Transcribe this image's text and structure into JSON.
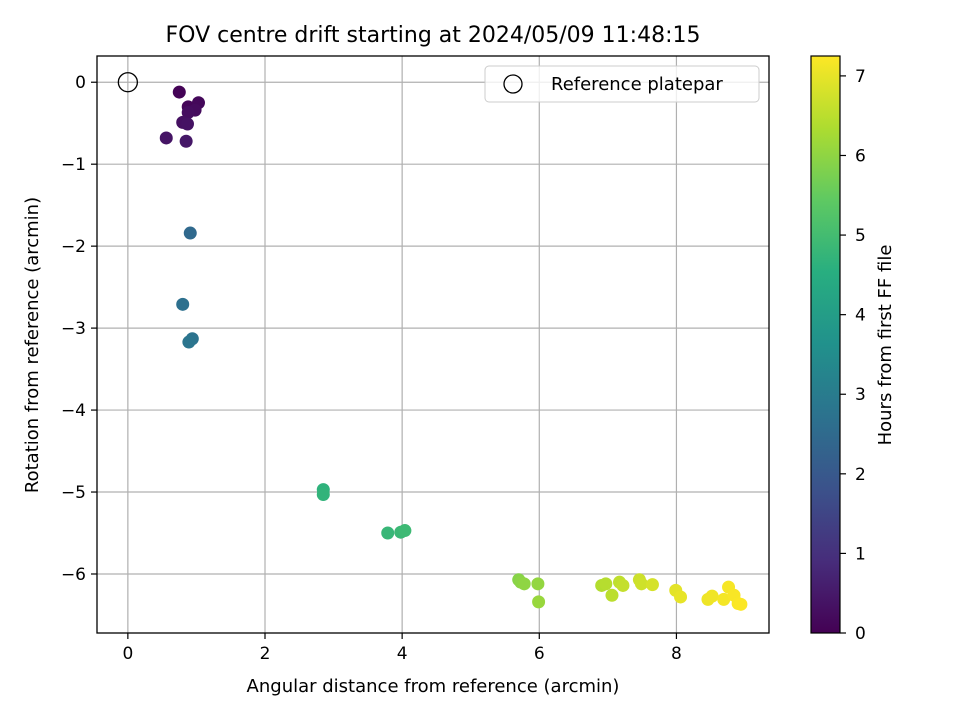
{
  "chart_data": {
    "type": "scatter",
    "title": "FOV centre drift starting at 2024/05/09 11:48:15",
    "xlabel": "Angular distance from reference (arcmin)",
    "ylabel": "Rotation from reference (arcmin)",
    "xlim": [
      -0.45,
      9.35
    ],
    "ylim": [
      -6.72,
      0.32
    ],
    "xticks": [
      0,
      2,
      4,
      6,
      8
    ],
    "yticks": [
      0,
      -1,
      -2,
      -3,
      -4,
      -5,
      -6
    ],
    "grid": true,
    "legend": {
      "location": "upper right",
      "entries": [
        "Reference platepar"
      ]
    },
    "reference_point": {
      "label": "Reference platepar",
      "x": 0,
      "y": 0
    },
    "colorbar": {
      "label": "Hours from first FF file",
      "colormap": "viridis",
      "range": [
        0,
        7.25
      ],
      "ticks": [
        0,
        1,
        2,
        3,
        4,
        5,
        6,
        7
      ]
    },
    "points": [
      {
        "x": 0.75,
        "y": -0.12,
        "hours": 0.05
      },
      {
        "x": 0.88,
        "y": -0.3,
        "hours": 0.1
      },
      {
        "x": 1.03,
        "y": -0.25,
        "hours": 0.15
      },
      {
        "x": 0.98,
        "y": -0.34,
        "hours": 0.2
      },
      {
        "x": 0.88,
        "y": -0.37,
        "hours": 0.25
      },
      {
        "x": 0.8,
        "y": -0.49,
        "hours": 0.3
      },
      {
        "x": 0.87,
        "y": -0.51,
        "hours": 0.35
      },
      {
        "x": 0.56,
        "y": -0.68,
        "hours": 0.4
      },
      {
        "x": 0.85,
        "y": -0.72,
        "hours": 0.45
      },
      {
        "x": 0.91,
        "y": -1.84,
        "hours": 2.45
      },
      {
        "x": 0.8,
        "y": -2.71,
        "hours": 2.65
      },
      {
        "x": 0.94,
        "y": -3.13,
        "hours": 2.75
      },
      {
        "x": 0.89,
        "y": -3.17,
        "hours": 2.8
      },
      {
        "x": 2.85,
        "y": -4.97,
        "hours": 4.65
      },
      {
        "x": 2.85,
        "y": -5.03,
        "hours": 4.7
      },
      {
        "x": 3.79,
        "y": -5.5,
        "hours": 4.8
      },
      {
        "x": 3.98,
        "y": -5.49,
        "hours": 4.85
      },
      {
        "x": 4.04,
        "y": -5.47,
        "hours": 4.9
      },
      {
        "x": 5.7,
        "y": -6.07,
        "hours": 5.9
      },
      {
        "x": 5.73,
        "y": -6.1,
        "hours": 5.95
      },
      {
        "x": 5.78,
        "y": -6.12,
        "hours": 6.0
      },
      {
        "x": 5.98,
        "y": -6.12,
        "hours": 6.05
      },
      {
        "x": 5.99,
        "y": -6.34,
        "hours": 6.1
      },
      {
        "x": 6.91,
        "y": -6.14,
        "hours": 6.4
      },
      {
        "x": 6.97,
        "y": -6.12,
        "hours": 6.45
      },
      {
        "x": 7.06,
        "y": -6.26,
        "hours": 6.5
      },
      {
        "x": 7.17,
        "y": -6.1,
        "hours": 6.55
      },
      {
        "x": 7.22,
        "y": -6.14,
        "hours": 6.6
      },
      {
        "x": 7.46,
        "y": -6.07,
        "hours": 6.7
      },
      {
        "x": 7.49,
        "y": -6.12,
        "hours": 6.72
      },
      {
        "x": 7.65,
        "y": -6.13,
        "hours": 6.8
      },
      {
        "x": 7.99,
        "y": -6.2,
        "hours": 6.95
      },
      {
        "x": 8.06,
        "y": -6.28,
        "hours": 7.0
      },
      {
        "x": 8.46,
        "y": -6.31,
        "hours": 7.08
      },
      {
        "x": 8.52,
        "y": -6.27,
        "hours": 7.1
      },
      {
        "x": 8.69,
        "y": -6.31,
        "hours": 7.15
      },
      {
        "x": 8.76,
        "y": -6.16,
        "hours": 7.17
      },
      {
        "x": 8.84,
        "y": -6.26,
        "hours": 7.19
      },
      {
        "x": 8.9,
        "y": -6.36,
        "hours": 7.21
      },
      {
        "x": 8.94,
        "y": -6.37,
        "hours": 7.23
      }
    ]
  }
}
